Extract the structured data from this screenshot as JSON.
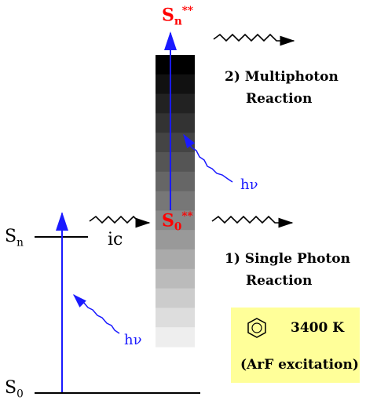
{
  "levels": {
    "s0_label": "S",
    "s0_sub": "0",
    "sn_label": "S",
    "sn_sub": "n",
    "ic_label": "ic"
  },
  "excited": {
    "s0ss_base": "S",
    "s0ss_sub": "0",
    "s0ss_sup": "**",
    "snss_base": "S",
    "snss_sub": "n",
    "snss_sup": "**"
  },
  "photons": {
    "hv_lower": "hν",
    "hv_upper": "hν"
  },
  "reactions": {
    "multi_line1": "2) Multiphoton",
    "multi_line2": "Reaction",
    "single_line1": "1) Single Photon",
    "single_line2": "Reaction"
  },
  "info_box": {
    "temperature": "3400 K",
    "excitation": "(ArF excitation)",
    "molecule_icon": "benzene-ring-icon",
    "background": "#ffff99"
  },
  "colors": {
    "excited_state": "#ff0000",
    "photon": "#1a1aff",
    "gradient_top": "#000000",
    "gradient_bottom": "#eeeeee"
  }
}
